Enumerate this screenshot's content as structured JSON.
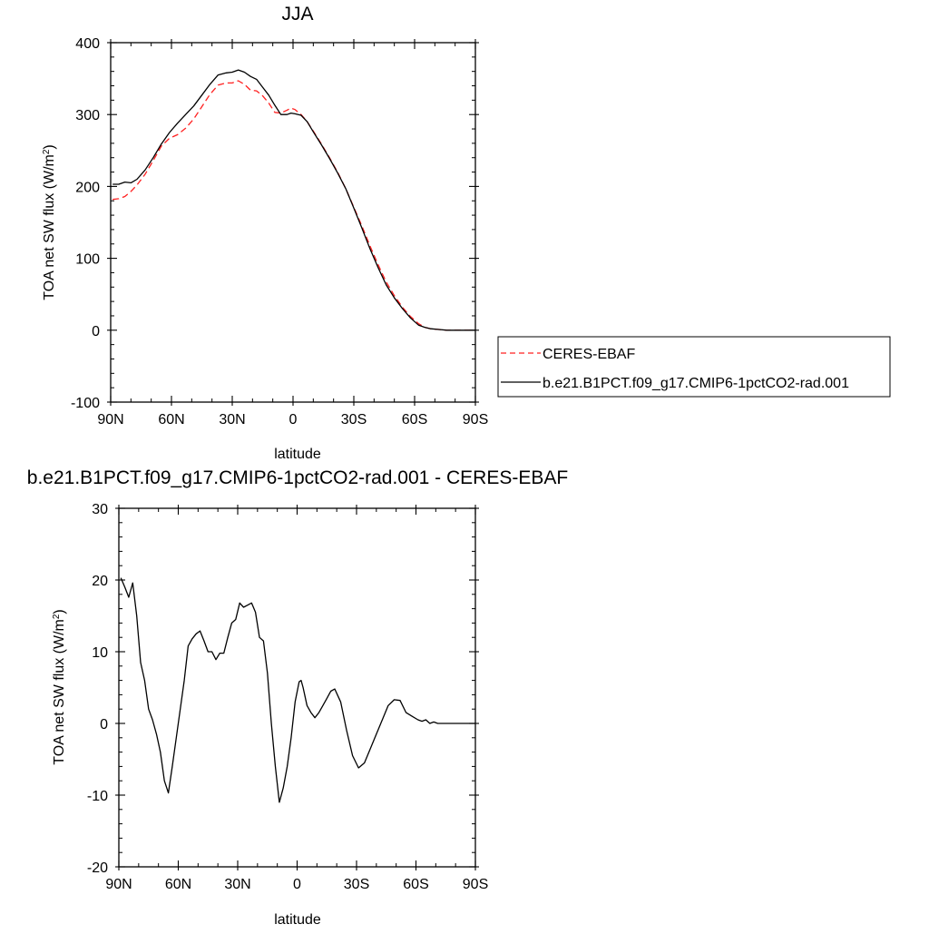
{
  "colors": {
    "model": "#000000",
    "obs": "#ff2020",
    "background": "#ffffff"
  },
  "legend": {
    "placement": "right of top chart",
    "items": [
      {
        "label": "CERES-EBAF",
        "style": "dashed",
        "color": "#ff2020"
      },
      {
        "label": "b.e21.B1PCT.f09_g17.CMIP6-1pctCO2-rad.001",
        "style": "solid",
        "color": "#000000"
      }
    ]
  },
  "chart_data": [
    {
      "type": "line",
      "title": "JJA",
      "xlabel": "latitude",
      "ylabel": "TOA net SW flux (W/m",
      "ylabel_sup": "2",
      "ylabel_end": ")",
      "xlim": [
        90,
        -90
      ],
      "ylim": [
        -100,
        400
      ],
      "x_ticks": [
        90,
        60,
        30,
        0,
        -30,
        -60,
        -90
      ],
      "x_tick_labels": [
        "90N",
        "60N",
        "30N",
        "0",
        "30S",
        "60S",
        "90S"
      ],
      "y_ticks": [
        -100,
        0,
        100,
        200,
        300,
        400
      ],
      "y_tick_labels": [
        "-100",
        "0",
        "100",
        "200",
        "300",
        "400"
      ],
      "grid": false,
      "series": [
        {
          "name": "CERES-EBAF",
          "style": "dashed",
          "color": "#ff2020",
          "x": [
            89,
            86,
            83,
            80,
            77,
            73,
            69,
            65,
            61,
            57,
            53,
            49,
            45,
            41,
            37,
            33,
            30,
            27,
            24,
            21,
            18,
            15,
            12,
            9,
            6,
            3,
            1,
            -1,
            -4,
            -7,
            -10,
            -14,
            -18,
            -22,
            -26,
            -30,
            -34,
            -38,
            -42,
            -46,
            -50,
            -54,
            -58,
            -62,
            -65,
            -68,
            -72,
            -76,
            -80,
            -84,
            -88,
            -90
          ],
          "y": [
            182,
            183,
            186,
            193,
            202,
            217,
            236,
            256,
            267,
            272,
            281,
            294,
            311,
            328,
            341,
            344,
            344,
            347,
            342,
            334,
            333,
            326,
            316,
            303,
            302,
            306,
            309,
            307,
            300,
            290,
            277,
            259,
            240,
            220,
            197,
            171,
            145,
            117,
            91,
            67,
            48,
            32,
            19,
            9,
            4,
            2,
            1,
            0,
            0,
            0,
            0,
            0
          ]
        },
        {
          "name": "b.e21.B1PCT.f09_g17.CMIP6-1pctCO2-rad.001",
          "style": "solid",
          "color": "#000000",
          "x": [
            89,
            86,
            83,
            80,
            77,
            73,
            69,
            65,
            61,
            57,
            53,
            49,
            45,
            41,
            37,
            33,
            30,
            27,
            24,
            21,
            18,
            15,
            12,
            9,
            6,
            3,
            1,
            -1,
            -4,
            -7,
            -10,
            -14,
            -18,
            -22,
            -26,
            -30,
            -34,
            -38,
            -42,
            -46,
            -50,
            -54,
            -58,
            -62,
            -65,
            -68,
            -72,
            -76,
            -80,
            -84,
            -88,
            -90
          ],
          "y": [
            203,
            203,
            206,
            205,
            210,
            223,
            240,
            259,
            275,
            288,
            300,
            312,
            327,
            342,
            355,
            358,
            359,
            362,
            359,
            353,
            349,
            338,
            327,
            313,
            300,
            300,
            302,
            301,
            299,
            290,
            276,
            258,
            239,
            219,
            197,
            170,
            142,
            113,
            87,
            63,
            45,
            30,
            17,
            7,
            4,
            2,
            1,
            0,
            0,
            0,
            0,
            0
          ]
        }
      ]
    },
    {
      "type": "line",
      "title": "b.e21.B1PCT.f09_g17.CMIP6-1pctCO2-rad.001 - CERES-EBAF",
      "xlabel": "latitude",
      "ylabel": "TOA net SW flux (W/m",
      "ylabel_sup": "2",
      "ylabel_end": ")",
      "xlim": [
        90,
        -90
      ],
      "ylim": [
        -20,
        30
      ],
      "x_ticks": [
        90,
        60,
        30,
        0,
        -30,
        -60,
        -90
      ],
      "x_tick_labels": [
        "90N",
        "60N",
        "30N",
        "0",
        "30S",
        "60S",
        "90S"
      ],
      "y_ticks": [
        -20,
        -10,
        0,
        10,
        20,
        30
      ],
      "y_tick_labels": [
        "-20",
        "-10",
        "0",
        "10",
        "20",
        "30"
      ],
      "grid": false,
      "series": [
        {
          "name": "",
          "style": "solid",
          "color": "#000000",
          "x": [
            89,
            87,
            85,
            83,
            81,
            79,
            77,
            75,
            73,
            71,
            69,
            67,
            65,
            63,
            61,
            59,
            57,
            55,
            53,
            51,
            49,
            47,
            45,
            43,
            41,
            39,
            37,
            35,
            33,
            31,
            29,
            27,
            25,
            23,
            21,
            19,
            17,
            15,
            13,
            11,
            9,
            7,
            5,
            3,
            1,
            -1,
            -2,
            -3,
            -5,
            -7,
            -9,
            -11,
            -13,
            -15,
            -17,
            -19,
            -22,
            -25,
            -28,
            -31,
            -34,
            -37,
            -40,
            -43,
            -46,
            -49,
            -52,
            -55,
            -58,
            -61,
            -63,
            -65,
            -67,
            -69,
            -71,
            -74,
            -77,
            -80,
            -84,
            -88,
            -90
          ],
          "y": [
            20.3,
            19.0,
            17.6,
            19.6,
            15.0,
            8.5,
            6.0,
            2.0,
            0.5,
            -1.5,
            -4.0,
            -8.0,
            -9.7,
            -6.0,
            -2.0,
            2.0,
            6.0,
            10.8,
            11.8,
            12.5,
            12.9,
            11.5,
            10.0,
            10.0,
            8.9,
            9.8,
            9.8,
            12.0,
            14.0,
            14.5,
            16.8,
            16.2,
            16.5,
            16.8,
            15.5,
            12.0,
            11.5,
            7.0,
            0.0,
            -6.0,
            -11.0,
            -9.0,
            -6.0,
            -2.0,
            3.0,
            5.8,
            6.0,
            5.0,
            2.5,
            1.5,
            0.8,
            1.5,
            2.5,
            3.5,
            4.5,
            4.8,
            3.0,
            -1.0,
            -4.5,
            -6.2,
            -5.5,
            -3.5,
            -1.5,
            0.5,
            2.5,
            3.3,
            3.2,
            1.5,
            1.0,
            0.5,
            0.3,
            0.5,
            0.0,
            0.2,
            0.0,
            0.0,
            0.0,
            0.0,
            0.0,
            0.0,
            0.0
          ]
        }
      ]
    }
  ]
}
